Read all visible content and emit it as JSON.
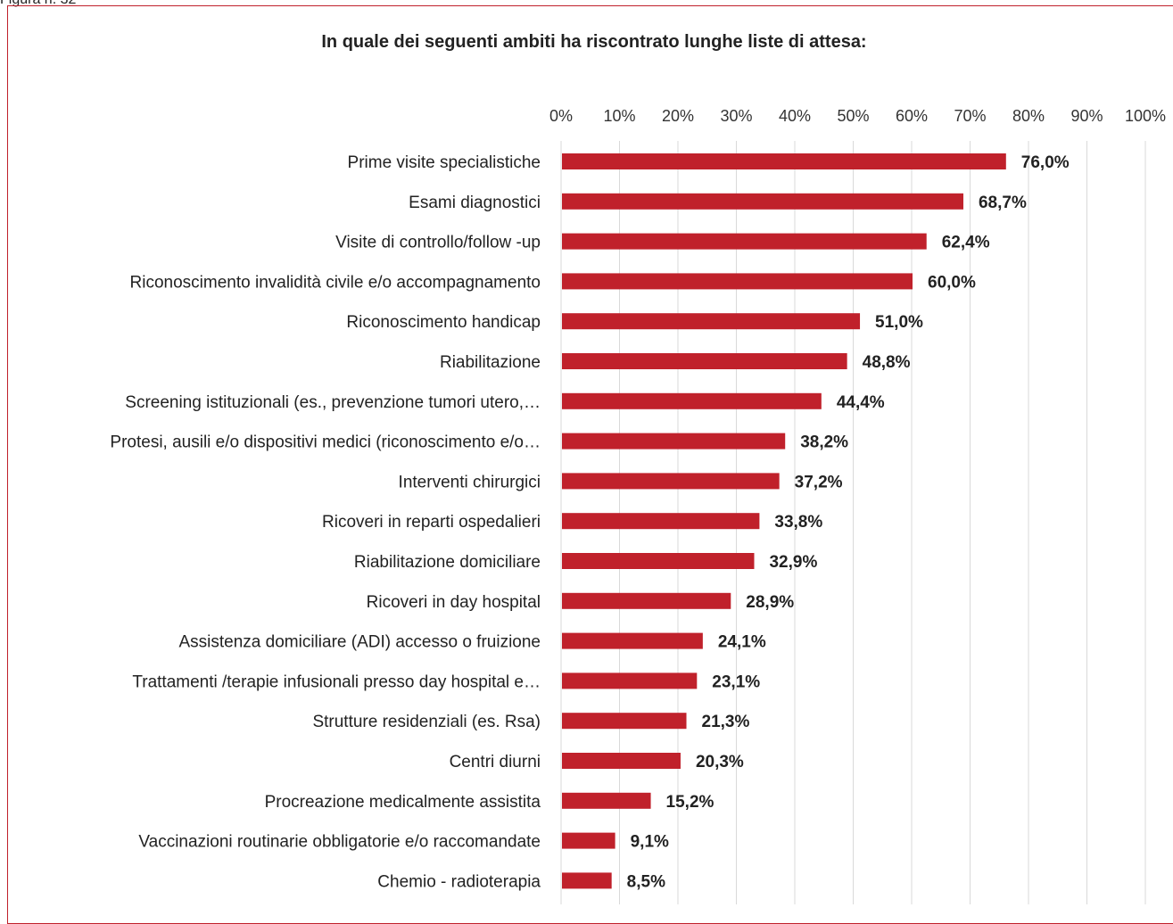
{
  "figure_caption": "Figura n. 32",
  "colors": {
    "bar": "#c0212b",
    "frame": "#c0212b",
    "grid": "#d9d9d9"
  },
  "chart_data": {
    "type": "bar",
    "orientation": "horizontal",
    "title": "In quale dei seguenti ambiti ha riscontrato lunghe liste di attesa:",
    "xlabel": "",
    "ylabel": "",
    "xlim": [
      0,
      100
    ],
    "x_axis_position": "top",
    "grid": true,
    "ticks": [
      "0%",
      "10%",
      "20%",
      "30%",
      "40%",
      "50%",
      "60%",
      "70%",
      "80%",
      "90%",
      "100%"
    ],
    "categories": [
      "Prime visite specialistiche",
      "Esami diagnostici",
      "Visite di controllo/follow -up",
      "Riconoscimento invalidità civile e/o accompagnamento",
      "Riconoscimento handicap",
      "Riabilitazione",
      "Screening istituzionali (es., prevenzione tumori utero,…",
      "Protesi, ausili e/o dispositivi medici (riconoscimento e/o…",
      "Interventi chirurgici",
      "Ricoveri in reparti ospedalieri",
      "Riabilitazione domiciliare",
      "Ricoveri in day hospital",
      "Assistenza domiciliare (ADI) accesso o fruizione",
      "Trattamenti /terapie infusionali presso day hospital e…",
      "Strutture residenziali (es. Rsa)",
      "Centri diurni",
      "Procreazione medicalmente assistita",
      "Vaccinazioni routinarie obbligatorie e/o raccomandate",
      "Chemio - radioterapia"
    ],
    "values": [
      76.0,
      68.7,
      62.4,
      60.0,
      51.0,
      48.8,
      44.4,
      38.2,
      37.2,
      33.8,
      32.9,
      28.9,
      24.1,
      23.1,
      21.3,
      20.3,
      15.2,
      9.1,
      8.5
    ],
    "value_labels": [
      "76,0%",
      "68,7%",
      "62,4%",
      "60,0%",
      "51,0%",
      "48,8%",
      "44,4%",
      "38,2%",
      "37,2%",
      "33,8%",
      "32,9%",
      "28,9%",
      "24,1%",
      "23,1%",
      "21,3%",
      "20,3%",
      "15,2%",
      "9,1%",
      "8,5%"
    ]
  }
}
